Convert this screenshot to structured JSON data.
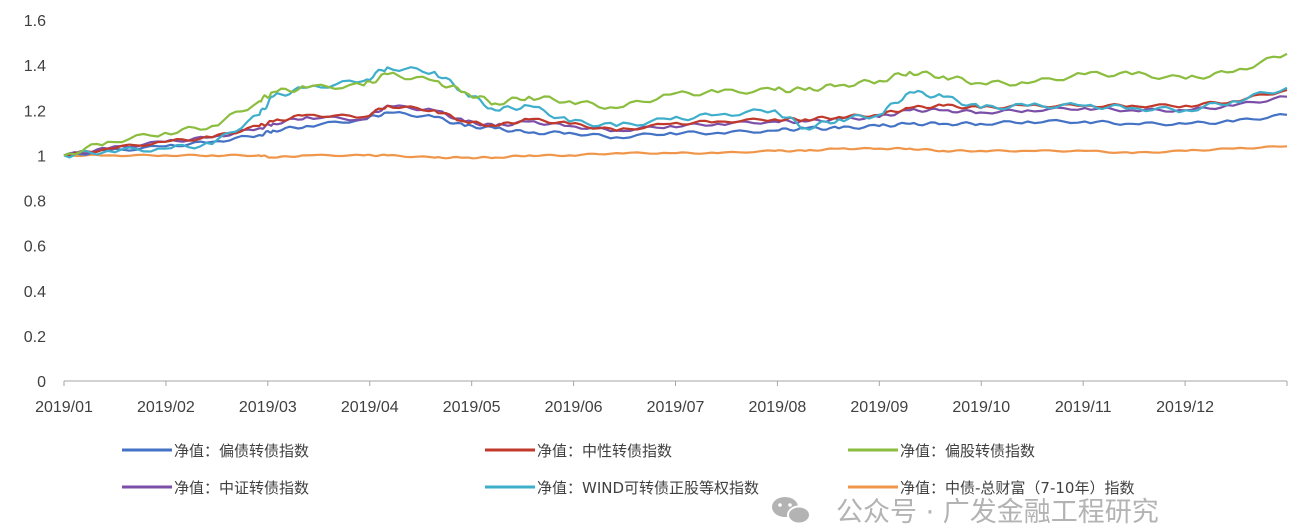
{
  "chart_data": {
    "type": "line",
    "title": "",
    "xlabel": "",
    "ylabel": "",
    "ylim": [
      0,
      1.6
    ],
    "yticks": [
      "0",
      "0.2",
      "0.4",
      "0.6",
      "0.8",
      "1",
      "1.2",
      "1.4",
      "1.6"
    ],
    "categories": [
      "2019/01",
      "2019/02",
      "2019/03",
      "2019/04",
      "2019/05",
      "2019/06",
      "2019/07",
      "2019/08",
      "2019/09",
      "2019/10",
      "2019/11",
      "2019/12"
    ],
    "grid": false,
    "legend_position": "bottom",
    "x": [
      "2019-01-02",
      "2019-01-15",
      "2019-02-01",
      "2019-02-15",
      "2019-03-01",
      "2019-03-05",
      "2019-03-15",
      "2019-04-01",
      "2019-04-08",
      "2019-04-22",
      "2019-05-01",
      "2019-05-10",
      "2019-05-20",
      "2019-06-01",
      "2019-06-15",
      "2019-07-01",
      "2019-07-15",
      "2019-08-01",
      "2019-08-10",
      "2019-08-20",
      "2019-09-01",
      "2019-09-10",
      "2019-09-20",
      "2019-10-01",
      "2019-10-15",
      "2019-11-01",
      "2019-11-15",
      "2019-12-01",
      "2019-12-15",
      "2019-12-31"
    ],
    "series": [
      {
        "name": "净值：偏债转债指数",
        "color": "#4472c4",
        "values": [
          1.0,
          1.02,
          1.04,
          1.06,
          1.09,
          1.11,
          1.13,
          1.16,
          1.19,
          1.17,
          1.13,
          1.12,
          1.1,
          1.1,
          1.08,
          1.1,
          1.1,
          1.11,
          1.12,
          1.12,
          1.13,
          1.14,
          1.14,
          1.14,
          1.15,
          1.15,
          1.14,
          1.14,
          1.15,
          1.18
        ]
      },
      {
        "name": "净值：中性转债指数",
        "color": "#c0392b",
        "values": [
          1.0,
          1.03,
          1.06,
          1.08,
          1.13,
          1.15,
          1.18,
          1.17,
          1.22,
          1.2,
          1.15,
          1.13,
          1.16,
          1.14,
          1.11,
          1.14,
          1.15,
          1.16,
          1.16,
          1.17,
          1.18,
          1.21,
          1.22,
          1.21,
          1.22,
          1.22,
          1.22,
          1.22,
          1.24,
          1.29
        ]
      },
      {
        "name": "净值：偏股转债指数",
        "color": "#8bbd3f",
        "values": [
          1.0,
          1.06,
          1.1,
          1.13,
          1.24,
          1.28,
          1.3,
          1.31,
          1.36,
          1.33,
          1.28,
          1.23,
          1.26,
          1.24,
          1.21,
          1.27,
          1.28,
          1.29,
          1.29,
          1.31,
          1.33,
          1.37,
          1.35,
          1.32,
          1.32,
          1.36,
          1.36,
          1.34,
          1.37,
          1.45
        ]
      },
      {
        "name": "净值：中证转债指数",
        "color": "#7b4fa8",
        "values": [
          1.0,
          1.03,
          1.06,
          1.08,
          1.12,
          1.14,
          1.17,
          1.16,
          1.22,
          1.2,
          1.15,
          1.13,
          1.15,
          1.13,
          1.11,
          1.13,
          1.14,
          1.15,
          1.15,
          1.16,
          1.17,
          1.2,
          1.2,
          1.19,
          1.2,
          1.21,
          1.2,
          1.2,
          1.22,
          1.26
        ]
      },
      {
        "name": "净值：WIND可转债正股等权指数",
        "color": "#3eaecb",
        "values": [
          1.0,
          1.02,
          1.03,
          1.05,
          1.18,
          1.26,
          1.3,
          1.33,
          1.39,
          1.37,
          1.28,
          1.2,
          1.22,
          1.15,
          1.13,
          1.16,
          1.18,
          1.2,
          1.12,
          1.16,
          1.18,
          1.28,
          1.26,
          1.21,
          1.22,
          1.22,
          1.21,
          1.2,
          1.24,
          1.3
        ]
      },
      {
        "name": "净值：中债-总财富（7-10年）指数",
        "color": "#f0964a",
        "values": [
          1.0,
          1.0,
          1.0,
          1.0,
          1.0,
          0.99,
          1.0,
          1.0,
          1.0,
          0.99,
          0.99,
          0.99,
          1.0,
          1.0,
          1.01,
          1.01,
          1.01,
          1.02,
          1.02,
          1.03,
          1.03,
          1.03,
          1.02,
          1.02,
          1.02,
          1.02,
          1.01,
          1.02,
          1.03,
          1.04
        ]
      }
    ]
  },
  "watermark": "公众号 · 广发金融工程研究"
}
